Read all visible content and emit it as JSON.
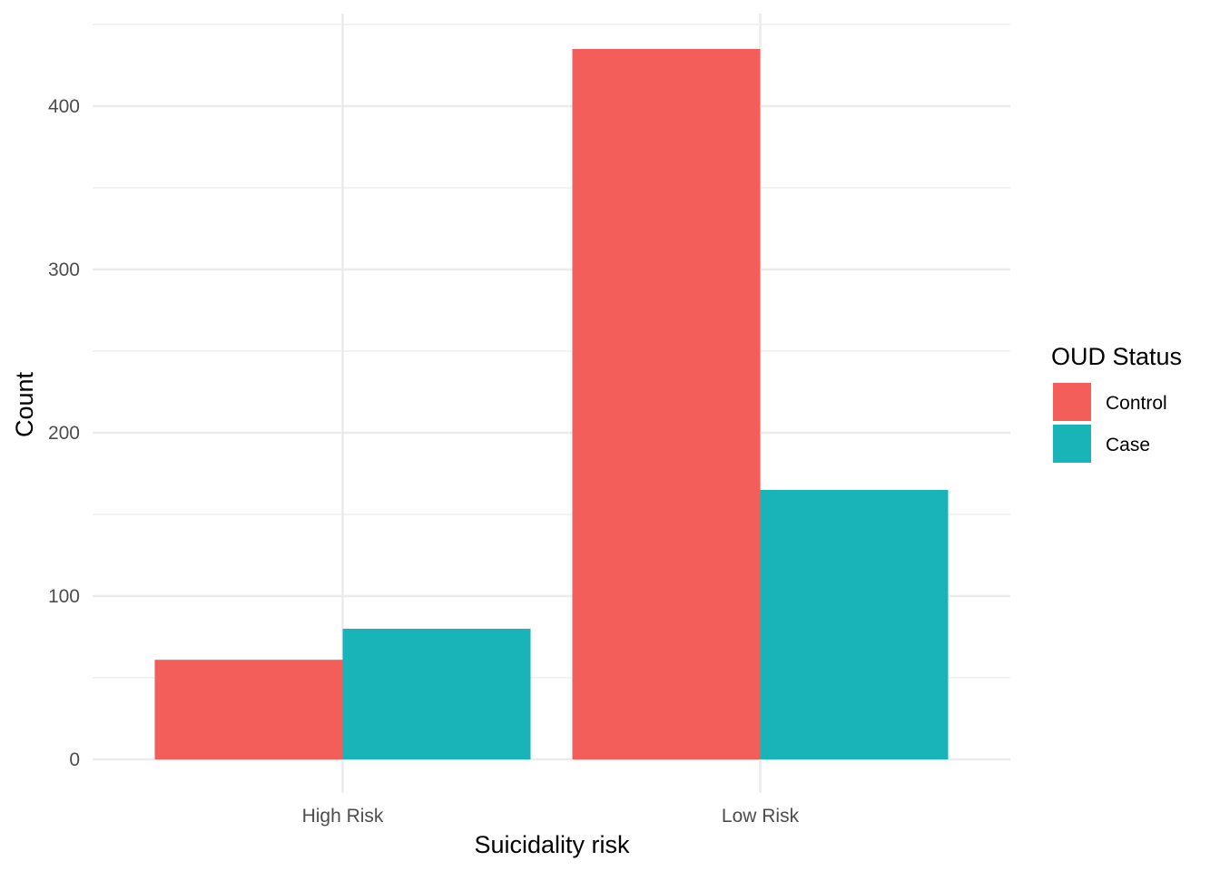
{
  "chart_data": {
    "type": "bar",
    "categories": [
      "High Risk",
      "Low Risk"
    ],
    "series": [
      {
        "name": "Control",
        "color": "#F8766D",
        "values": [
          61,
          435
        ]
      },
      {
        "name": "Case",
        "color": "#00BFC4",
        "values": [
          80,
          165
        ]
      }
    ],
    "xlabel": "Suicidality risk",
    "ylabel": "Count",
    "legend_title": "OUD Status",
    "legend_position": "right",
    "ylim": [
      0,
      457
    ],
    "y_ticks": [
      "0",
      "100",
      "200",
      "300",
      "400"
    ],
    "y_minor_ticks": [
      50,
      150,
      250,
      350,
      450
    ],
    "grid": true,
    "bar_colors_rendered": {
      "Control": "#F35E5A",
      "Case": "#19B4B8"
    }
  }
}
